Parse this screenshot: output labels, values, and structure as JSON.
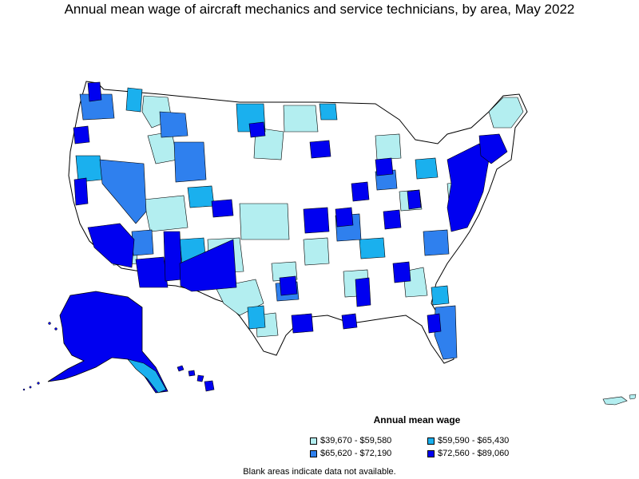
{
  "title": "Annual mean wage of aircraft mechanics and service technicians, by area, May 2022",
  "legend": {
    "title": "Annual mean wage",
    "items": [
      {
        "label": "$39,670 - $59,580",
        "color": "#b3eef0"
      },
      {
        "label": "$59,590 - $65,430",
        "color": "#1ab0ee"
      },
      {
        "label": "$65,620 - $72,190",
        "color": "#2f80ee"
      },
      {
        "label": "$72,560 - $89,060",
        "color": "#0000f0"
      }
    ]
  },
  "footnote": "Blank areas indicate data not available."
}
